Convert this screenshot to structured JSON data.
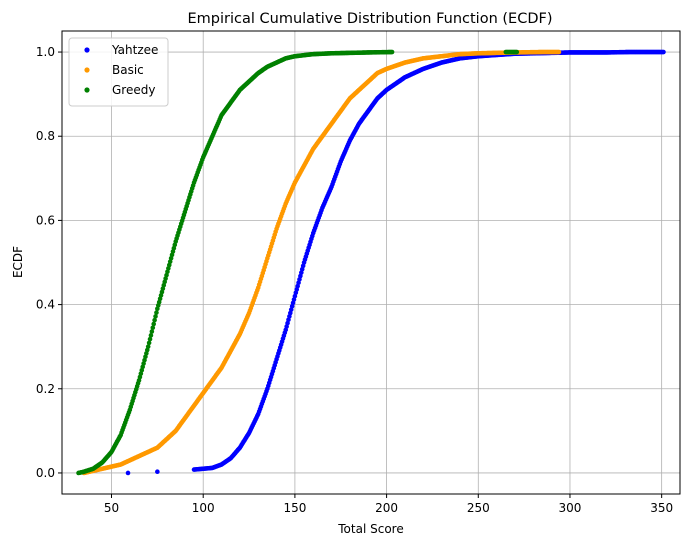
{
  "chart_data": {
    "type": "scatter",
    "title": "Empirical Cumulative Distribution Function (ECDF)",
    "xlabel": "Total Score",
    "ylabel": "ECDF",
    "xlim": [
      23,
      360
    ],
    "ylim": [
      -0.05,
      1.05
    ],
    "xticks": [
      50,
      100,
      150,
      200,
      250,
      300,
      350
    ],
    "yticks": [
      0.0,
      0.2,
      0.4,
      0.6,
      0.8,
      1.0
    ],
    "xtick_labels": [
      "50",
      "100",
      "150",
      "200",
      "250",
      "300",
      "350"
    ],
    "ytick_labels": [
      "0.0",
      "0.2",
      "0.4",
      "0.6",
      "0.8",
      "1.0"
    ],
    "grid": true,
    "legend_position": "top-left",
    "series": [
      {
        "name": "Yahtzee",
        "color": "#0000ff",
        "x": [
          59,
          75,
          95,
          105,
          110,
          115,
          120,
          125,
          130,
          135,
          140,
          145,
          150,
          155,
          160,
          165,
          170,
          175,
          180,
          185,
          190,
          195,
          200,
          210,
          220,
          230,
          240,
          250,
          260,
          270,
          280,
          290,
          300,
          310,
          320,
          332,
          347,
          351
        ],
        "y": [
          0.0,
          0.003,
          0.008,
          0.012,
          0.02,
          0.035,
          0.06,
          0.095,
          0.14,
          0.2,
          0.27,
          0.34,
          0.42,
          0.5,
          0.57,
          0.63,
          0.68,
          0.74,
          0.79,
          0.83,
          0.86,
          0.89,
          0.91,
          0.94,
          0.96,
          0.975,
          0.985,
          0.99,
          0.993,
          0.996,
          0.997,
          0.998,
          0.999,
          0.999,
          0.999,
          1.0,
          1.0,
          1.0
        ]
      },
      {
        "name": "Basic",
        "color": "#ff9900",
        "x": [
          35,
          40,
          45,
          50,
          55,
          60,
          65,
          70,
          75,
          80,
          85,
          90,
          95,
          100,
          105,
          110,
          115,
          120,
          125,
          130,
          135,
          140,
          145,
          150,
          155,
          160,
          165,
          170,
          175,
          180,
          185,
          190,
          195,
          200,
          210,
          220,
          230,
          240,
          250,
          260,
          270,
          285,
          294
        ],
        "y": [
          0.0,
          0.005,
          0.01,
          0.015,
          0.02,
          0.03,
          0.04,
          0.05,
          0.06,
          0.08,
          0.1,
          0.13,
          0.16,
          0.19,
          0.22,
          0.25,
          0.29,
          0.33,
          0.38,
          0.44,
          0.51,
          0.58,
          0.64,
          0.69,
          0.73,
          0.77,
          0.8,
          0.83,
          0.86,
          0.89,
          0.91,
          0.93,
          0.95,
          0.96,
          0.975,
          0.985,
          0.99,
          0.995,
          0.997,
          0.998,
          0.999,
          1.0,
          1.0
        ]
      },
      {
        "name": "Greedy",
        "color": "#008000",
        "x": [
          32,
          35,
          40,
          45,
          50,
          55,
          60,
          65,
          70,
          75,
          80,
          85,
          90,
          95,
          100,
          105,
          110,
          115,
          120,
          125,
          130,
          135,
          140,
          145,
          150,
          160,
          170,
          180,
          190,
          203,
          265,
          271
        ],
        "y": [
          0.0,
          0.003,
          0.01,
          0.025,
          0.05,
          0.09,
          0.15,
          0.22,
          0.3,
          0.39,
          0.47,
          0.55,
          0.62,
          0.69,
          0.75,
          0.8,
          0.85,
          0.88,
          0.91,
          0.93,
          0.95,
          0.965,
          0.975,
          0.985,
          0.99,
          0.995,
          0.997,
          0.998,
          0.999,
          1.0,
          1.0,
          1.0
        ]
      }
    ]
  }
}
